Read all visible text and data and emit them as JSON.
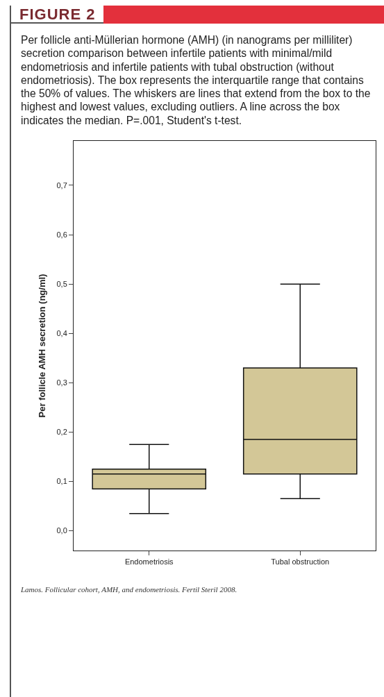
{
  "chart_data": {
    "type": "box",
    "title": "FIGURE 2",
    "subtitle": "Per follicle anti-Müllerian hormone (AMH) (in nanograms per milliliter) secretion comparison between infertile patients with minimal/mild endometriosis and infertile patients with tubal obstruction (without endometriosis). The box represents the interquartile range that contains the 50% of values. The whiskers are lines that extend from the box to the highest and lowest values, excluding outliers. A line across the box indicates the median. P=.001, Student's t-test.",
    "ylabel": "Per follicle AMH secretion (ng/ml)",
    "categories": [
      "Endometriosis",
      "Tubal obstruction"
    ],
    "boxes": [
      {
        "low": 0.035,
        "q1": 0.085,
        "median": 0.115,
        "q3": 0.125,
        "high": 0.175
      },
      {
        "low": 0.065,
        "q1": 0.115,
        "median": 0.185,
        "q3": 0.33,
        "high": 0.5
      }
    ],
    "color": "#d3c797",
    "ylim": [
      -0.04,
      0.79
    ],
    "yticks": [
      {
        "value": 0,
        "label": "0,0"
      },
      {
        "value": 0.1,
        "label": "0,1"
      },
      {
        "value": 0.2,
        "label": "0,2"
      },
      {
        "value": 0.3,
        "label": "0,3"
      },
      {
        "value": 0.4,
        "label": "0,4"
      },
      {
        "value": 0.5,
        "label": "0,5"
      },
      {
        "value": 0.6,
        "label": "0,6"
      },
      {
        "value": 0.7,
        "label": "0,7"
      }
    ],
    "grid": false,
    "annotations": [
      "Lamos. Follicular cohort, AMH, and endometriosis. Fertil Steril 2008."
    ]
  }
}
